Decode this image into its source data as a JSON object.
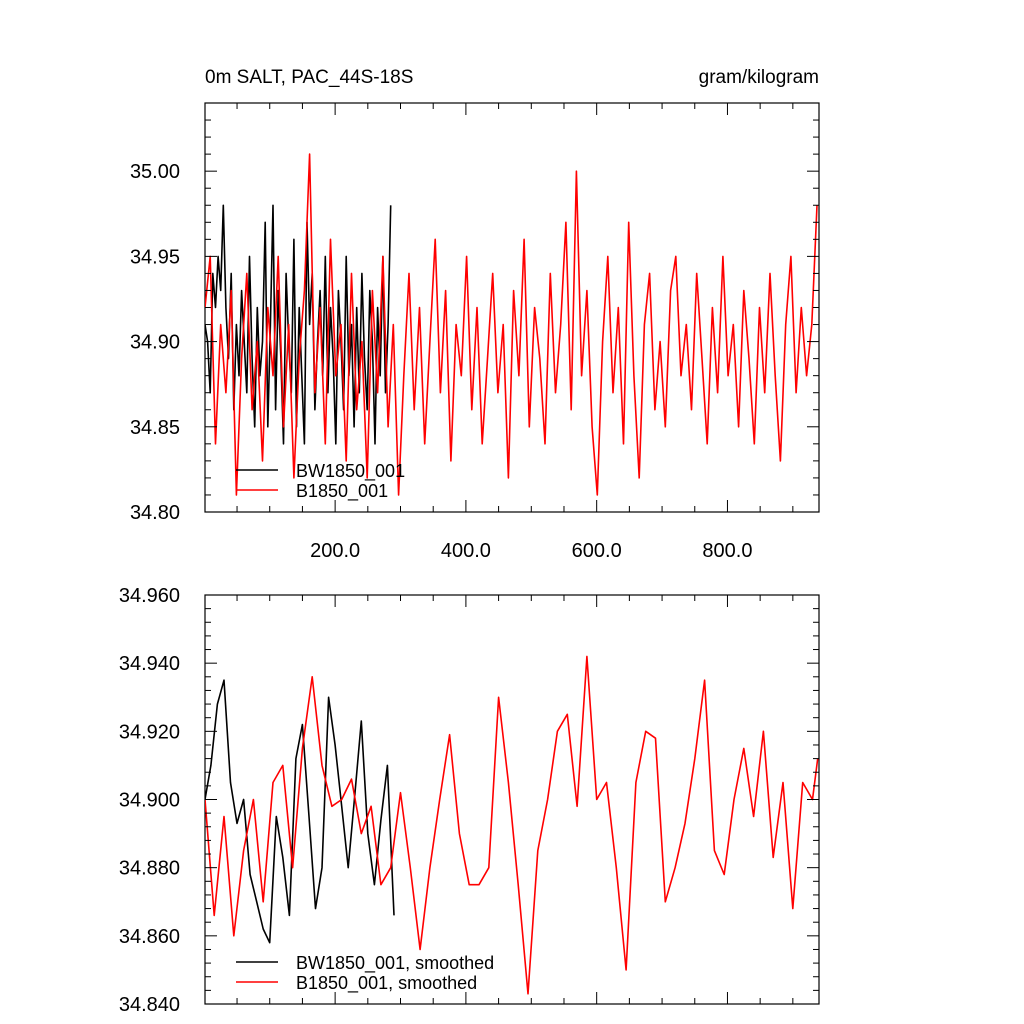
{
  "chart_data": [
    {
      "type": "line",
      "title_left": "0m SALT, PAC_44S-18S",
      "title_right": "gram/kilogram",
      "xlabel": "",
      "ylabel": "",
      "xlim": [
        1,
        940
      ],
      "ylim": [
        34.8,
        35.04
      ],
      "x_ticks": [
        200,
        400,
        600,
        800
      ],
      "x_tick_labels": [
        "200.0",
        "400.0",
        "600.0",
        "800.0"
      ],
      "y_ticks": [
        34.8,
        34.85,
        34.9,
        34.95,
        35.0
      ],
      "y_tick_labels": [
        "34.80",
        "34.85",
        "34.90",
        "34.95",
        "35.00"
      ],
      "grid": false,
      "legend_position": "bottom-left",
      "series": [
        {
          "name": "BW1850_001",
          "color": "#000000",
          "x": [
            1,
            5,
            9,
            13,
            17,
            21,
            25,
            29,
            33,
            37,
            41,
            45,
            49,
            53,
            57,
            61,
            65,
            69,
            73,
            77,
            81,
            85,
            89,
            93,
            97,
            101,
            105,
            109,
            113,
            117,
            121,
            125,
            129,
            133,
            137,
            141,
            145,
            149,
            153,
            157,
            161,
            165,
            169,
            173,
            177,
            181,
            185,
            189,
            193,
            197,
            201,
            205,
            209,
            213,
            217,
            221,
            225,
            229,
            233,
            237,
            241,
            245,
            249,
            253,
            257,
            261,
            265,
            269,
            273,
            277,
            281,
            285
          ],
          "values": [
            34.91,
            34.9,
            34.87,
            34.94,
            34.92,
            34.95,
            34.93,
            34.98,
            34.92,
            34.89,
            34.94,
            34.86,
            34.91,
            34.88,
            34.93,
            34.9,
            34.87,
            34.95,
            34.89,
            34.85,
            34.92,
            34.88,
            34.9,
            34.97,
            34.85,
            34.91,
            34.98,
            34.86,
            34.93,
            34.89,
            34.84,
            34.94,
            34.9,
            34.87,
            34.96,
            34.85,
            34.92,
            34.88,
            34.84,
            34.97,
            34.91,
            34.94,
            34.86,
            34.9,
            34.93,
            34.88,
            34.95,
            34.87,
            34.92,
            34.89,
            34.84,
            34.93,
            34.9,
            34.86,
            34.95,
            34.88,
            34.91,
            34.85,
            34.92,
            34.87,
            34.94,
            34.89,
            34.86,
            34.93,
            34.9,
            34.84,
            34.92,
            34.88,
            34.95,
            34.87,
            34.91,
            34.98
          ]
        },
        {
          "name": "B1850_001",
          "color": "#ff0000",
          "x": [
            1,
            9,
            17,
            25,
            33,
            41,
            49,
            57,
            65,
            73,
            81,
            89,
            97,
            105,
            113,
            121,
            129,
            137,
            145,
            153,
            161,
            169,
            177,
            185,
            193,
            201,
            209,
            217,
            225,
            233,
            241,
            249,
            257,
            265,
            273,
            281,
            289,
            297,
            305,
            313,
            321,
            329,
            337,
            345,
            353,
            361,
            369,
            377,
            385,
            393,
            401,
            409,
            417,
            425,
            433,
            441,
            449,
            457,
            465,
            473,
            481,
            489,
            497,
            505,
            513,
            521,
            529,
            537,
            545,
            553,
            561,
            569,
            577,
            585,
            593,
            601,
            609,
            617,
            625,
            633,
            641,
            649,
            657,
            665,
            673,
            681,
            689,
            697,
            705,
            713,
            721,
            729,
            737,
            745,
            753,
            761,
            769,
            777,
            785,
            793,
            801,
            809,
            817,
            825,
            833,
            841,
            849,
            857,
            865,
            873,
            881,
            889,
            897,
            905,
            913,
            921,
            929,
            937
          ],
          "values": [
            34.92,
            34.95,
            34.84,
            34.91,
            34.87,
            34.93,
            34.81,
            34.89,
            34.94,
            34.86,
            34.9,
            34.83,
            34.92,
            34.88,
            34.95,
            34.85,
            34.91,
            34.82,
            34.89,
            34.93,
            35.01,
            34.87,
            34.92,
            34.84,
            34.96,
            34.88,
            34.91,
            34.83,
            34.94,
            34.86,
            34.9,
            34.82,
            34.93,
            34.87,
            34.95,
            34.85,
            34.91,
            34.81,
            34.88,
            34.94,
            34.86,
            34.92,
            34.84,
            34.9,
            34.96,
            34.87,
            34.93,
            34.83,
            34.91,
            34.88,
            34.95,
            34.86,
            34.92,
            34.84,
            34.89,
            34.94,
            34.87,
            34.91,
            34.82,
            34.93,
            34.88,
            34.96,
            34.85,
            34.92,
            34.89,
            34.84,
            34.94,
            34.87,
            34.91,
            34.97,
            34.86,
            35.0,
            34.88,
            34.93,
            34.85,
            34.81,
            34.9,
            34.95,
            34.87,
            34.92,
            34.84,
            34.97,
            34.88,
            34.82,
            34.91,
            34.94,
            34.86,
            34.9,
            34.85,
            34.93,
            34.95,
            34.88,
            34.91,
            34.86,
            34.94,
            34.89,
            34.84,
            34.92,
            34.87,
            34.95,
            34.88,
            34.91,
            34.85,
            34.93,
            34.89,
            34.84,
            34.92,
            34.87,
            34.94,
            34.88,
            34.83,
            34.91,
            34.95,
            34.87,
            34.92,
            34.88,
            34.91,
            34.98
          ]
        }
      ]
    },
    {
      "type": "line",
      "xlabel": "",
      "ylabel": "",
      "xlim": [
        1,
        940
      ],
      "ylim": [
        34.84,
        34.96
      ],
      "x_ticks": [
        200,
        400,
        600,
        800
      ],
      "y_ticks": [
        34.84,
        34.86,
        34.88,
        34.9,
        34.92,
        34.94,
        34.96
      ],
      "y_tick_labels": [
        "34.840",
        "34.860",
        "34.880",
        "34.900",
        "34.920",
        "34.940",
        "34.960"
      ],
      "grid": false,
      "legend_position": "bottom-left",
      "series": [
        {
          "name": "BW1850_001, smoothed",
          "color": "#000000",
          "x": [
            1,
            10,
            20,
            30,
            40,
            50,
            60,
            70,
            80,
            90,
            100,
            110,
            120,
            130,
            140,
            150,
            160,
            170,
            180,
            190,
            200,
            210,
            220,
            230,
            240,
            250,
            260,
            270,
            280,
            290
          ],
          "values": [
            34.9,
            34.91,
            34.928,
            34.935,
            34.905,
            34.893,
            34.9,
            34.878,
            34.87,
            34.862,
            34.858,
            34.895,
            34.883,
            34.866,
            34.912,
            34.922,
            34.895,
            34.868,
            34.88,
            34.93,
            34.916,
            34.898,
            34.88,
            34.901,
            34.923,
            34.89,
            34.875,
            34.894,
            34.91,
            34.866
          ]
        },
        {
          "name": "B1850_001, smoothed",
          "color": "#ff0000",
          "x": [
            1,
            15,
            30,
            45,
            60,
            75,
            90,
            105,
            120,
            135,
            150,
            165,
            180,
            195,
            210,
            225,
            240,
            255,
            270,
            285,
            300,
            315,
            330,
            345,
            360,
            375,
            390,
            405,
            420,
            435,
            450,
            465,
            480,
            495,
            510,
            525,
            540,
            555,
            570,
            585,
            600,
            615,
            630,
            645,
            660,
            675,
            690,
            705,
            720,
            735,
            750,
            765,
            780,
            795,
            810,
            825,
            840,
            855,
            870,
            885,
            900,
            915,
            930,
            938
          ],
          "values": [
            34.9,
            34.866,
            34.895,
            34.86,
            34.885,
            34.9,
            34.87,
            34.905,
            34.91,
            34.88,
            34.915,
            34.936,
            34.91,
            34.898,
            34.9,
            34.906,
            34.89,
            34.898,
            34.875,
            34.88,
            34.902,
            34.88,
            34.856,
            34.88,
            34.9,
            34.919,
            34.89,
            34.875,
            34.875,
            34.88,
            34.93,
            34.905,
            34.875,
            34.843,
            34.885,
            34.9,
            34.92,
            34.925,
            34.898,
            34.942,
            34.9,
            34.905,
            34.88,
            34.85,
            34.905,
            34.92,
            34.918,
            34.87,
            34.88,
            34.893,
            34.912,
            34.935,
            34.885,
            34.878,
            34.9,
            34.915,
            34.895,
            34.92,
            34.883,
            34.905,
            34.868,
            34.905,
            34.9,
            34.912
          ]
        }
      ]
    }
  ]
}
